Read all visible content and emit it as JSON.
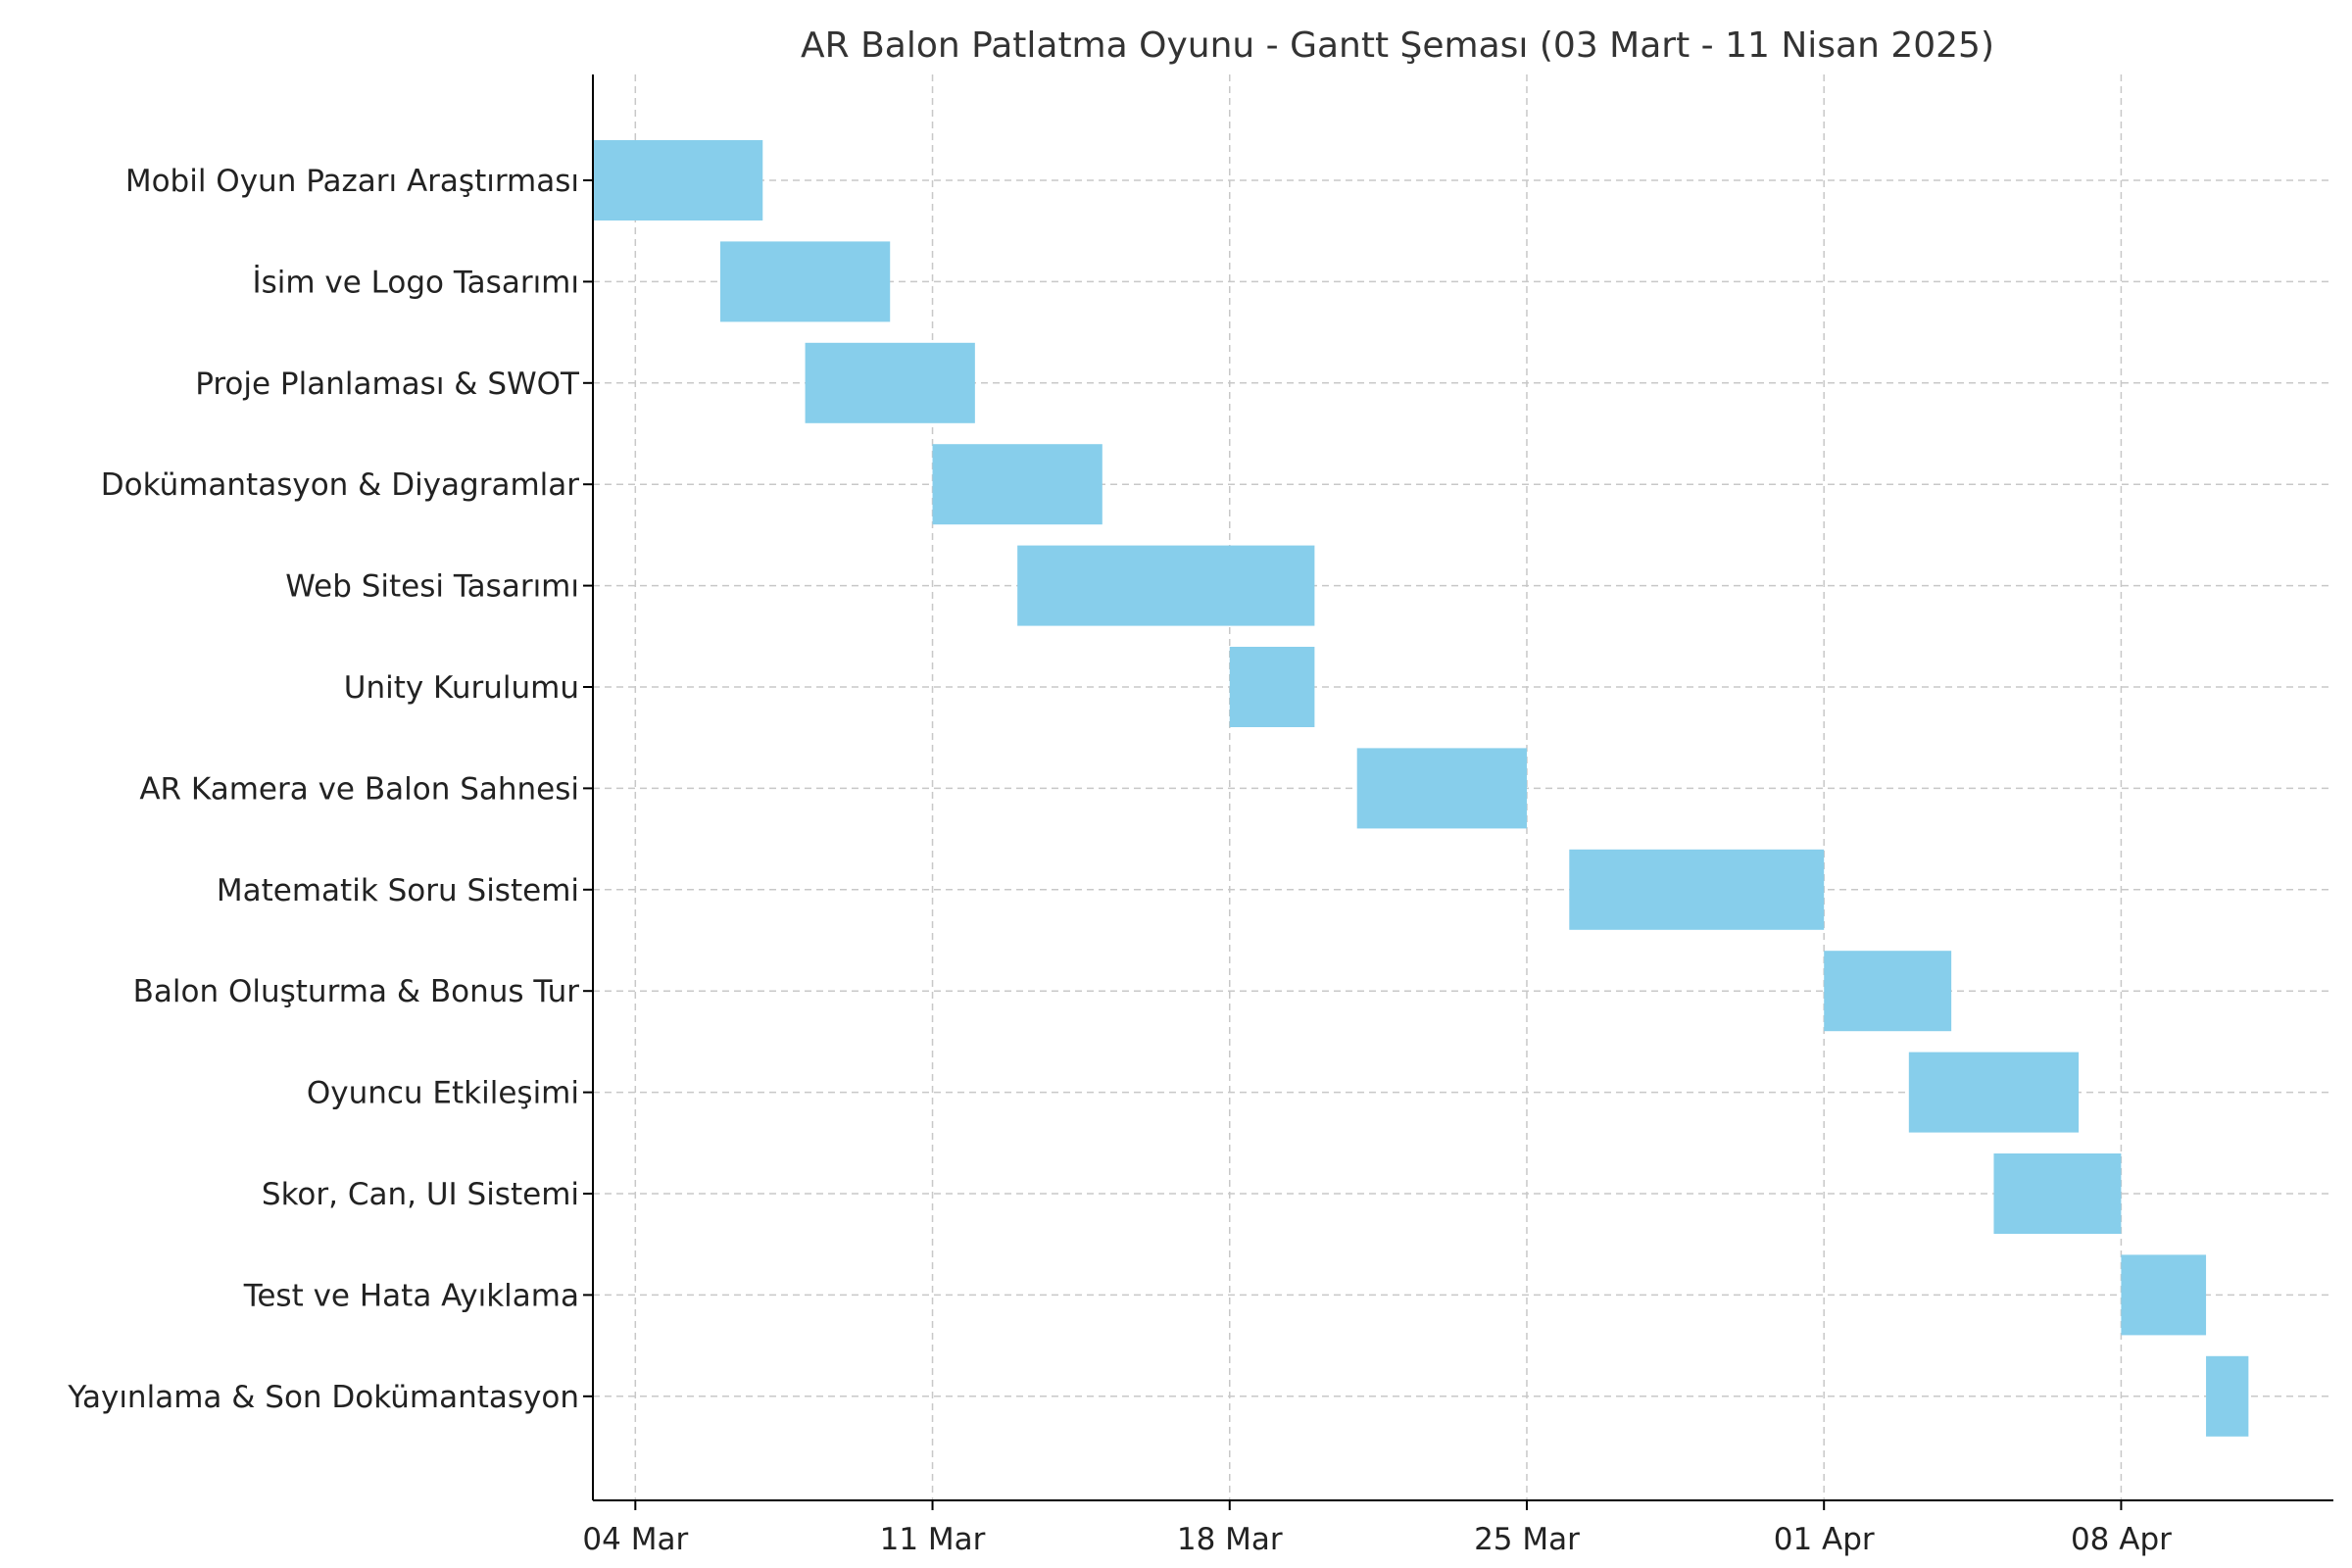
{
  "chart_data": {
    "type": "gantt",
    "title": "AR Balon Patlatma Oyunu - Gantt Şeması (03 Mart - 11 Nisan 2025)",
    "xlabel": "",
    "ylabel": "",
    "bar_color": "#87CEEB",
    "grid": true,
    "x_range": [
      "2025-03-03",
      "2025-04-13"
    ],
    "x_ticks": [
      {
        "date": "2025-03-04",
        "label": "04 Mar"
      },
      {
        "date": "2025-03-11",
        "label": "11 Mar"
      },
      {
        "date": "2025-03-18",
        "label": "18 Mar"
      },
      {
        "date": "2025-03-25",
        "label": "25 Mar"
      },
      {
        "date": "2025-04-01",
        "label": "01 Apr"
      },
      {
        "date": "2025-04-08",
        "label": "08 Apr"
      }
    ],
    "tasks": [
      {
        "name": "Mobil Oyun Pazarı Araştırması",
        "start": "2025-03-03",
        "end": "2025-03-07"
      },
      {
        "name": "İsim ve Logo Tasarımı",
        "start": "2025-03-06",
        "end": "2025-03-10"
      },
      {
        "name": "Proje Planlaması & SWOT",
        "start": "2025-03-08",
        "end": "2025-03-12"
      },
      {
        "name": "Dokümantasyon & Diyagramlar",
        "start": "2025-03-11",
        "end": "2025-03-15"
      },
      {
        "name": "Web Sitesi Tasarımı",
        "start": "2025-03-13",
        "end": "2025-03-20"
      },
      {
        "name": "Unity Kurulumu",
        "start": "2025-03-18",
        "end": "2025-03-20"
      },
      {
        "name": "AR Kamera ve Balon Sahnesi",
        "start": "2025-03-21",
        "end": "2025-03-25"
      },
      {
        "name": "Matematik Soru Sistemi",
        "start": "2025-03-26",
        "end": "2025-04-01"
      },
      {
        "name": "Balon Oluşturma & Bonus Tur",
        "start": "2025-04-01",
        "end": "2025-04-04"
      },
      {
        "name": "Oyuncu Etkileşimi",
        "start": "2025-04-03",
        "end": "2025-04-07"
      },
      {
        "name": "Skor, Can, UI Sistemi",
        "start": "2025-04-05",
        "end": "2025-04-08"
      },
      {
        "name": "Test ve Hata Ayıklama",
        "start": "2025-04-08",
        "end": "2025-04-10"
      },
      {
        "name": "Yayınlama & Son Dokümantasyon",
        "start": "2025-04-10",
        "end": "2025-04-11"
      }
    ]
  }
}
